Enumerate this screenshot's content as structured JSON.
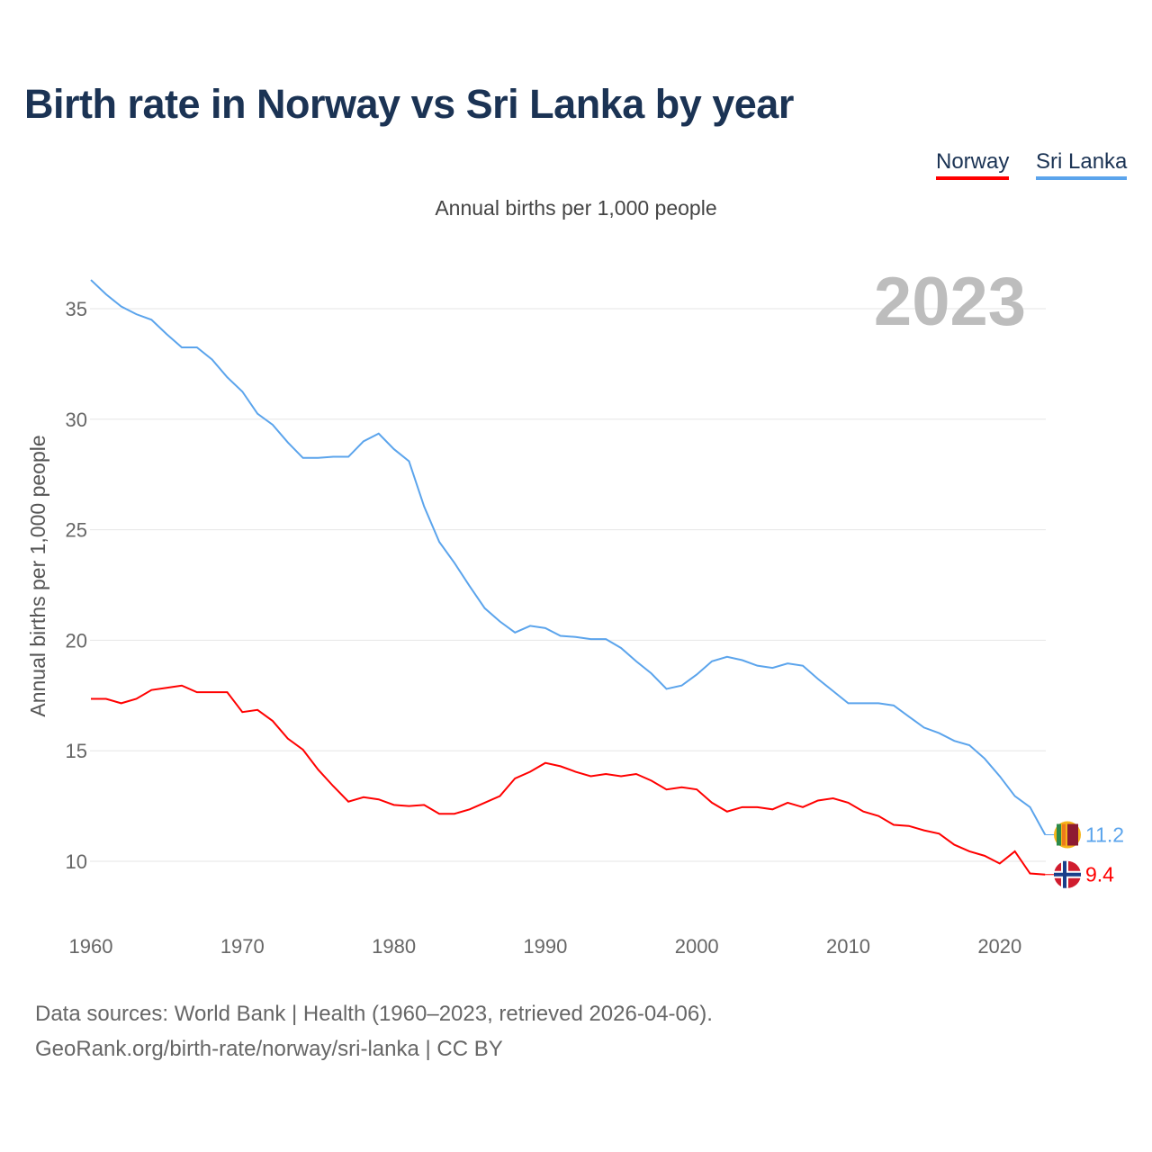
{
  "title": "Birth rate in Norway vs Sri Lanka by year",
  "subtitle": "Annual births per 1,000 people",
  "year_label": "2023",
  "source_line1": "Data sources: World Bank | Health (1960–2023, retrieved 2026-04-06).",
  "source_line2": "GeoRank.org/birth-rate/norway/sri-lanka | CC BY",
  "chart_data": {
    "type": "line",
    "title": "Birth rate in Norway vs Sri Lanka by year",
    "xlabel": "",
    "ylabel": "Annual births per 1,000 people",
    "xlim": [
      1960,
      2023
    ],
    "ylim": [
      8,
      37
    ],
    "yticks": [
      10,
      15,
      20,
      25,
      30,
      35
    ],
    "xticks": [
      1960,
      1970,
      1980,
      1990,
      2000,
      2010,
      2020
    ],
    "grid": true,
    "legend": "top-right",
    "x": [
      1960,
      1961,
      1962,
      1963,
      1964,
      1965,
      1966,
      1967,
      1968,
      1969,
      1970,
      1971,
      1972,
      1973,
      1974,
      1975,
      1976,
      1977,
      1978,
      1979,
      1980,
      1981,
      1982,
      1983,
      1984,
      1985,
      1986,
      1987,
      1988,
      1989,
      1990,
      1991,
      1992,
      1993,
      1994,
      1995,
      1996,
      1997,
      1998,
      1999,
      2000,
      2001,
      2002,
      2003,
      2004,
      2005,
      2006,
      2007,
      2008,
      2009,
      2010,
      2011,
      2012,
      2013,
      2014,
      2015,
      2016,
      2017,
      2018,
      2019,
      2020,
      2021,
      2022,
      2023
    ],
    "series": [
      {
        "name": "Norway",
        "color": "#ff0000",
        "end_label": "9.4",
        "values": [
          17.35,
          17.35,
          17.15,
          17.35,
          17.75,
          17.85,
          17.95,
          17.65,
          17.65,
          17.65,
          16.75,
          16.85,
          16.35,
          15.55,
          15.05,
          14.15,
          13.4,
          12.7,
          12.9,
          12.8,
          12.55,
          12.5,
          12.55,
          12.15,
          12.15,
          12.35,
          12.65,
          12.95,
          13.75,
          14.05,
          14.45,
          14.3,
          14.05,
          13.85,
          13.95,
          13.85,
          13.95,
          13.65,
          13.25,
          13.35,
          13.25,
          12.65,
          12.25,
          12.45,
          12.45,
          12.35,
          12.65,
          12.45,
          12.75,
          12.85,
          12.65,
          12.25,
          12.05,
          11.65,
          11.6,
          11.4,
          11.25,
          10.75,
          10.45,
          10.25,
          9.9,
          10.45,
          9.45,
          9.4
        ]
      },
      {
        "name": "Sri Lanka",
        "color": "#5ba4ec",
        "end_label": "11.2",
        "values": [
          36.3,
          35.65,
          35.1,
          34.75,
          34.5,
          33.85,
          33.25,
          33.25,
          32.7,
          31.9,
          31.25,
          30.25,
          29.75,
          28.95,
          28.25,
          28.25,
          28.3,
          28.3,
          29.0,
          29.35,
          28.65,
          28.1,
          26.05,
          24.45,
          23.5,
          22.45,
          21.45,
          20.85,
          20.35,
          20.65,
          20.55,
          20.2,
          20.15,
          20.05,
          20.05,
          19.65,
          19.05,
          18.5,
          17.8,
          17.95,
          18.45,
          19.05,
          19.25,
          19.1,
          18.85,
          18.75,
          18.95,
          18.85,
          18.25,
          17.7,
          17.15,
          17.15,
          17.15,
          17.05,
          16.55,
          16.05,
          15.8,
          15.45,
          15.25,
          14.65,
          13.85,
          12.95,
          12.45,
          11.2
        ]
      }
    ]
  }
}
